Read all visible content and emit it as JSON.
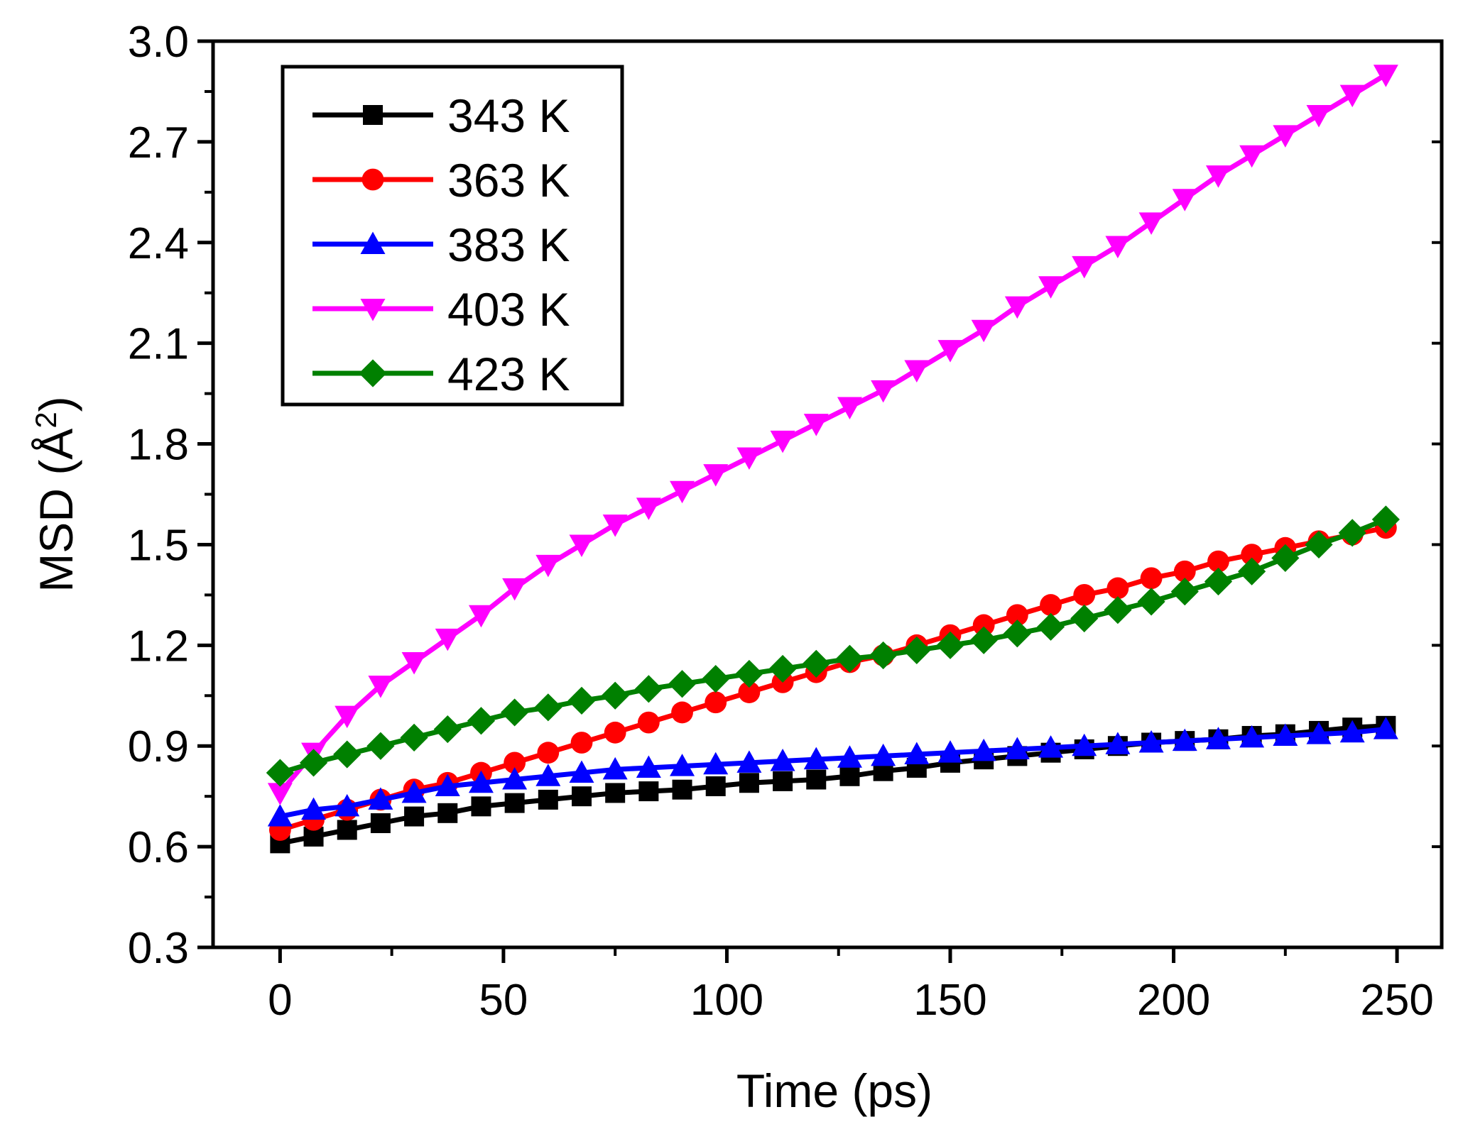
{
  "chart_data": {
    "type": "line",
    "title": "",
    "xlabel": "Time (ps)",
    "ylabel_text": "MSD (Å",
    "ylabel_sup": "2",
    "ylabel_close": ")",
    "xlim": [
      -15,
      260
    ],
    "ylim": [
      0.3,
      3.0
    ],
    "xticks": [
      0,
      50,
      100,
      150,
      200,
      250
    ],
    "xtick_labels": [
      "0",
      "50",
      "100",
      "150",
      "200",
      "250"
    ],
    "yticks": [
      0.3,
      0.6,
      0.9,
      1.2,
      1.5,
      1.8,
      2.1,
      2.4,
      2.7,
      3.0
    ],
    "ytick_labels": [
      "0.3",
      "0.6",
      "0.9",
      "1.2",
      "1.5",
      "1.8",
      "2.1",
      "2.4",
      "2.7",
      "3.0"
    ],
    "grid": false,
    "legend_position": "top-left",
    "x": [
      0,
      7.5,
      15,
      22.5,
      30,
      37.5,
      45,
      52.5,
      60,
      67.5,
      75,
      82.5,
      90,
      97.5,
      105,
      112.5,
      120,
      127.5,
      135,
      142.5,
      150,
      157.5,
      165,
      172.5,
      180,
      187.5,
      195,
      202.5,
      210,
      217.5,
      225,
      232.5,
      240,
      247.5
    ],
    "series": [
      {
        "name": "343 K",
        "color": "#000000",
        "marker": "square",
        "values": [
          0.61,
          0.63,
          0.65,
          0.67,
          0.69,
          0.7,
          0.72,
          0.73,
          0.74,
          0.75,
          0.76,
          0.765,
          0.77,
          0.78,
          0.79,
          0.795,
          0.8,
          0.81,
          0.825,
          0.835,
          0.85,
          0.86,
          0.87,
          0.88,
          0.89,
          0.9,
          0.91,
          0.915,
          0.92,
          0.93,
          0.935,
          0.945,
          0.955,
          0.96
        ]
      },
      {
        "name": "363 K",
        "color": "#ff0000",
        "marker": "circle",
        "values": [
          0.65,
          0.68,
          0.71,
          0.74,
          0.77,
          0.79,
          0.82,
          0.85,
          0.88,
          0.91,
          0.94,
          0.97,
          1.0,
          1.03,
          1.06,
          1.09,
          1.12,
          1.15,
          1.17,
          1.2,
          1.23,
          1.26,
          1.29,
          1.32,
          1.35,
          1.37,
          1.4,
          1.42,
          1.45,
          1.47,
          1.49,
          1.51,
          1.53,
          1.55
        ]
      },
      {
        "name": "383 K",
        "color": "#0000ff",
        "marker": "triangle-up",
        "values": [
          0.69,
          0.71,
          0.72,
          0.74,
          0.76,
          0.78,
          0.79,
          0.8,
          0.81,
          0.82,
          0.83,
          0.835,
          0.84,
          0.845,
          0.85,
          0.855,
          0.86,
          0.865,
          0.87,
          0.875,
          0.88,
          0.885,
          0.89,
          0.895,
          0.9,
          0.905,
          0.91,
          0.915,
          0.92,
          0.925,
          0.93,
          0.935,
          0.94,
          0.95
        ]
      },
      {
        "name": "403 K",
        "color": "#ff00ff",
        "marker": "triangle-down",
        "values": [
          0.76,
          0.88,
          0.99,
          1.08,
          1.15,
          1.22,
          1.29,
          1.37,
          1.44,
          1.5,
          1.56,
          1.61,
          1.66,
          1.71,
          1.76,
          1.81,
          1.86,
          1.91,
          1.96,
          2.02,
          2.08,
          2.14,
          2.21,
          2.27,
          2.33,
          2.39,
          2.46,
          2.53,
          2.6,
          2.66,
          2.72,
          2.78,
          2.84,
          2.9
        ]
      },
      {
        "name": "423 K",
        "color": "#008000",
        "marker": "diamond",
        "values": [
          0.82,
          0.85,
          0.875,
          0.9,
          0.925,
          0.95,
          0.975,
          1.0,
          1.015,
          1.035,
          1.05,
          1.07,
          1.085,
          1.1,
          1.115,
          1.13,
          1.145,
          1.16,
          1.17,
          1.185,
          1.2,
          1.215,
          1.235,
          1.255,
          1.28,
          1.305,
          1.33,
          1.36,
          1.39,
          1.42,
          1.46,
          1.5,
          1.535,
          1.575
        ]
      }
    ]
  }
}
